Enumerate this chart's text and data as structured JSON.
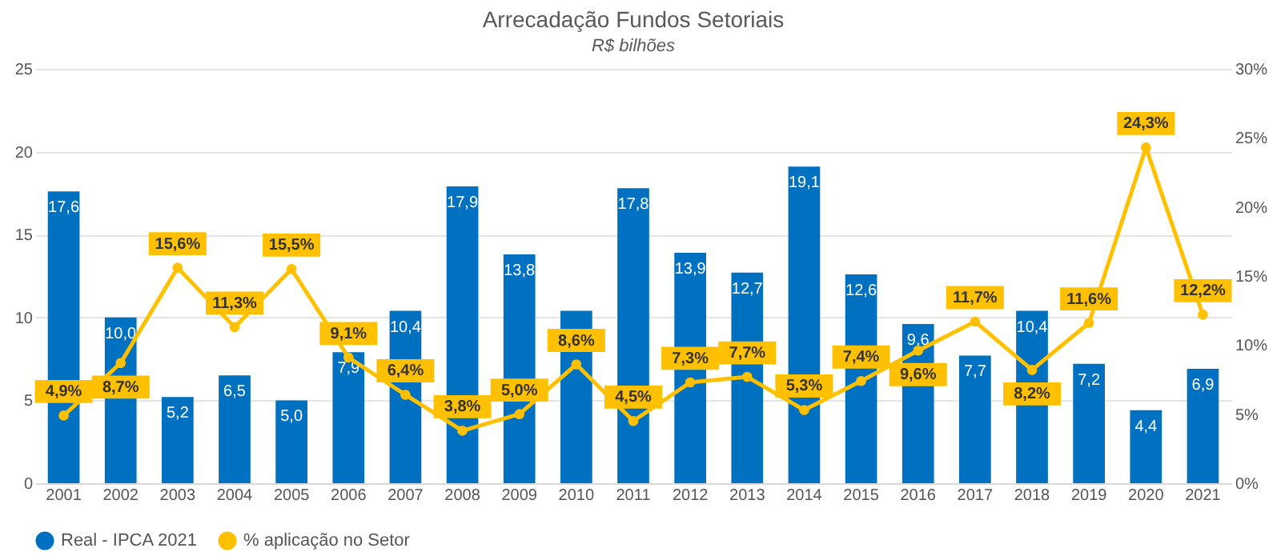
{
  "chart_data": {
    "type": "bar",
    "title": "Arrecadação  Fundos Setoriais",
    "subtitle": "R$ bilhões",
    "categories": [
      "2001",
      "2002",
      "2003",
      "2004",
      "2005",
      "2006",
      "2007",
      "2008",
      "2009",
      "2010",
      "2011",
      "2012",
      "2013",
      "2014",
      "2015",
      "2016",
      "2017",
      "2018",
      "2019",
      "2020",
      "2021"
    ],
    "series": [
      {
        "name": "Real - IPCA 2021",
        "color": "#0070c0",
        "values": [
          17.6,
          10.0,
          5.2,
          6.5,
          5.0,
          7.9,
          10.4,
          17.9,
          13.8,
          10.4,
          17.8,
          13.9,
          12.7,
          19.1,
          12.6,
          9.6,
          7.7,
          10.4,
          7.2,
          4.4,
          6.9
        ],
        "value_labels": [
          "17,6",
          "10,0",
          "5,2",
          "6,5",
          "5,0",
          "7,9",
          "10,4",
          "17,9",
          "13,8",
          null,
          "17,8",
          "13,9",
          "12,7",
          "19,1",
          "12,6",
          "9,6",
          "7,7",
          "10,4",
          "7,2",
          "4,4",
          "6,9"
        ]
      },
      {
        "name": "% aplicação no Setor",
        "type": "line",
        "axis": "y2",
        "color": "#ffc000",
        "values": [
          4.9,
          8.7,
          15.6,
          11.3,
          15.5,
          9.1,
          6.4,
          3.8,
          5.0,
          8.6,
          4.5,
          7.3,
          7.7,
          5.3,
          7.4,
          9.6,
          11.7,
          8.2,
          11.6,
          24.3,
          12.2
        ],
        "value_labels": [
          "4,9%",
          "8,7%",
          "15,6%",
          "11,3%",
          "15,5%",
          "9,1%",
          "6,4%",
          "3,8%",
          "5,0%",
          "8,6%",
          "4,5%",
          "7,3%",
          "7,7%",
          "5,3%",
          "7,4%",
          "9,6%",
          "11,7%",
          "8,2%",
          "11,6%",
          "24,3%",
          "12,2%"
        ]
      }
    ],
    "ylim": [
      0,
      25
    ],
    "yticks": [
      0,
      5,
      10,
      15,
      20,
      25
    ],
    "y2lim": [
      0,
      30
    ],
    "y2ticks": [
      {
        "value": 0,
        "label": "0%"
      },
      {
        "value": 5,
        "label": "5%"
      },
      {
        "value": 10,
        "label": "10%"
      },
      {
        "value": 15,
        "label": "15%"
      },
      {
        "value": 20,
        "label": "20%"
      },
      {
        "value": 25,
        "label": "25%"
      },
      {
        "value": 30,
        "label": "30%"
      }
    ],
    "grid": "y",
    "legend": "bottom",
    "marker": "circle",
    "line_style": "solid"
  }
}
